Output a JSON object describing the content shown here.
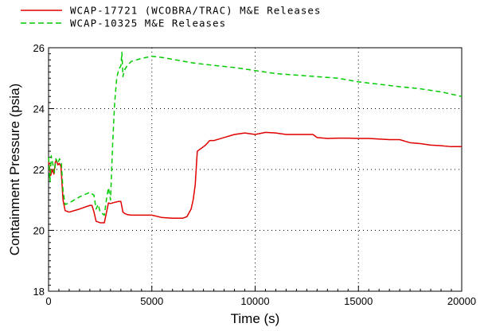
{
  "chart_data": {
    "type": "line",
    "title": "",
    "xlabel": "Time (s)",
    "ylabel": "Containment Pressure (psia)",
    "xlim": [
      0,
      20000
    ],
    "ylim": [
      18,
      26
    ],
    "x_ticks": [
      0,
      5000,
      10000,
      15000,
      20000
    ],
    "x_tick_labels": [
      "0",
      "5000",
      "10000",
      "15000",
      "20000"
    ],
    "y_ticks": [
      18,
      20,
      22,
      24,
      26
    ],
    "y_tick_labels": [
      "18",
      "20",
      "22",
      "24",
      "26"
    ],
    "grid": true,
    "grid_style": "dotted",
    "legend_position": "top-left-above-plot",
    "series": [
      {
        "name": "WCAP-17721 (WCOBRA/TRAC) M&E Releases",
        "color": "#e00000",
        "line_style": "solid",
        "x": [
          0,
          100,
          180,
          260,
          330,
          380,
          450,
          520,
          600,
          700,
          800,
          1000,
          1500,
          2000,
          2100,
          2200,
          2300,
          2500,
          2700,
          2900,
          3000,
          3200,
          3400,
          3500,
          3600,
          3700,
          3800,
          4000,
          4500,
          5000,
          5500,
          6000,
          6500,
          6700,
          6900,
          7000,
          7100,
          7200,
          7400,
          7600,
          7800,
          8000,
          8500,
          9000,
          9500,
          10000,
          10500,
          11000,
          11500,
          12000,
          12500,
          12800,
          13000,
          13500,
          14000,
          14500,
          15000,
          15500,
          16000,
          16500,
          17000,
          17500,
          18000,
          18500,
          19000,
          19500,
          20000
        ],
        "y": [
          22.3,
          21.8,
          22.0,
          21.85,
          22.25,
          22.3,
          22.15,
          22.2,
          22.1,
          21.0,
          20.65,
          20.6,
          20.7,
          20.82,
          20.82,
          20.6,
          20.3,
          20.25,
          20.25,
          20.9,
          20.88,
          20.92,
          20.95,
          20.95,
          20.6,
          20.55,
          20.52,
          20.5,
          20.5,
          20.5,
          20.42,
          20.4,
          20.4,
          20.45,
          20.7,
          21.0,
          21.5,
          22.6,
          22.7,
          22.8,
          22.95,
          22.95,
          23.05,
          23.15,
          23.2,
          23.15,
          23.22,
          23.2,
          23.15,
          23.15,
          23.15,
          23.15,
          23.05,
          23.02,
          23.03,
          23.03,
          23.02,
          23.02,
          23.0,
          22.98,
          22.98,
          22.88,
          22.85,
          22.8,
          22.78,
          22.75,
          22.75
        ]
      },
      {
        "name": "WCAP-10325 M&E Releases",
        "color": "#00cc00",
        "line_style": "dashed",
        "x": [
          0,
          70,
          130,
          200,
          280,
          360,
          450,
          530,
          620,
          700,
          800,
          1000,
          1500,
          2000,
          2200,
          2300,
          2400,
          2500,
          2600,
          2700,
          2800,
          2900,
          3000,
          3100,
          3200,
          3300,
          3400,
          3500,
          3550,
          3600,
          3650,
          3700,
          3800,
          4000,
          4500,
          5000,
          5500,
          6000,
          7000,
          8000,
          9000,
          10000,
          11000,
          12000,
          13000,
          14000,
          15000,
          16000,
          17000,
          18000,
          19000,
          20000
        ],
        "y": [
          22.4,
          21.6,
          22.45,
          22.2,
          21.9,
          22.35,
          22.2,
          22.35,
          22.2,
          21.3,
          20.85,
          20.9,
          21.1,
          21.25,
          21.15,
          20.7,
          20.85,
          20.6,
          20.55,
          20.5,
          21.0,
          21.4,
          21.0,
          22.8,
          24.2,
          25.0,
          25.3,
          25.4,
          25.85,
          25.05,
          25.2,
          25.3,
          25.4,
          25.55,
          25.65,
          25.72,
          25.68,
          25.62,
          25.5,
          25.42,
          25.35,
          25.25,
          25.15,
          25.1,
          25.05,
          25.0,
          24.88,
          24.8,
          24.72,
          24.65,
          24.55,
          24.4
        ]
      }
    ]
  }
}
